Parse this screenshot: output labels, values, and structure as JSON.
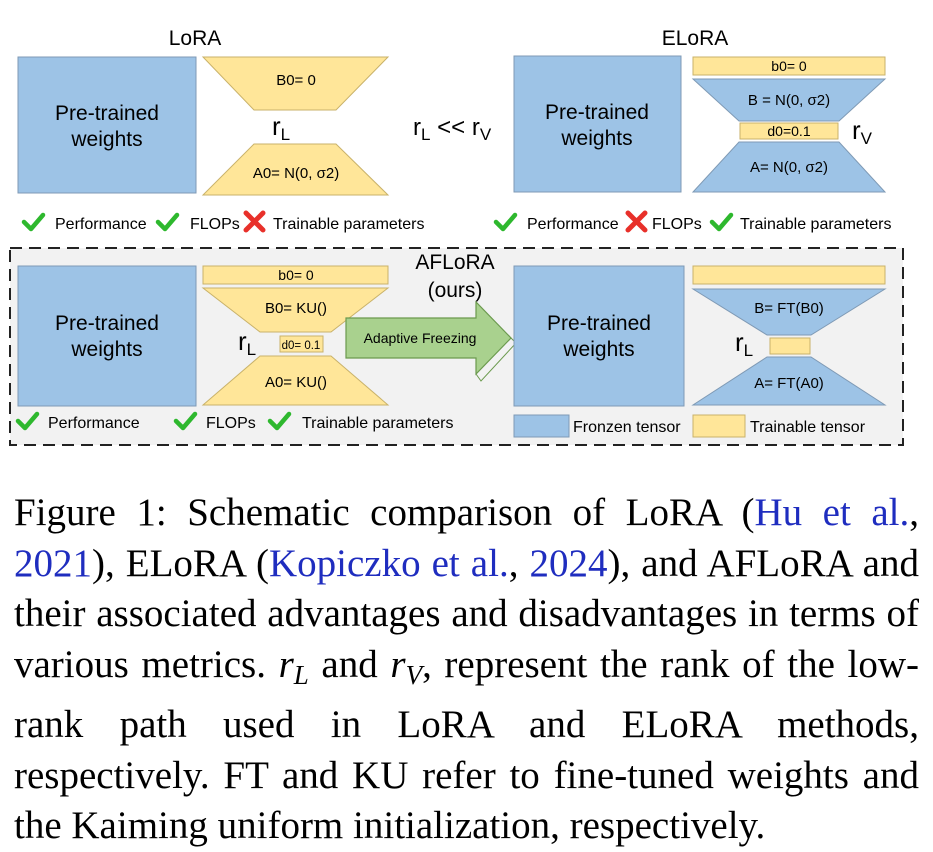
{
  "figure": {
    "lora": {
      "title": "LoRA",
      "pretrained": [
        "Pre-trained",
        "weights"
      ],
      "b0": "B0= 0",
      "a0": "A0= N(0, σ2)",
      "rank_label": "r",
      "rank_sub": "L"
    },
    "comparison": {
      "left": "r",
      "left_sub": "L",
      "op": " << r",
      "right_sub": "V"
    },
    "elora": {
      "title": "ELoRA",
      "pretrained": [
        "Pre-trained",
        "weights"
      ],
      "b0": "b0= 0",
      "b": "B = N(0, σ2)",
      "d0": "d0=0.1",
      "a": "A= N(0, σ2)",
      "rank_label": "r",
      "rank_sub": "V"
    },
    "lora_metrics": [
      {
        "mark": "check",
        "label": "Performance"
      },
      {
        "mark": "check",
        "label": "FLOPs"
      },
      {
        "mark": "cross",
        "label": "Trainable parameters"
      }
    ],
    "elora_metrics": [
      {
        "mark": "check",
        "label": "Performance"
      },
      {
        "mark": "cross",
        "label": "FLOPs"
      },
      {
        "mark": "check",
        "label": "Trainable parameters"
      }
    ],
    "aflora": {
      "title_line1": "AFLoRA",
      "title_line2": "(ours)",
      "pretrained_left": [
        "Pre-trained",
        "weights"
      ],
      "b0_small": "b0= 0",
      "b0": "B0= KU()",
      "d0": "d0= 0.1",
      "a0": "A0= KU()",
      "rank_label": "r",
      "rank_sub": "L",
      "arrow_label": "Adaptive Freezing",
      "pretrained_right": [
        "Pre-trained",
        "weights"
      ],
      "b": "B= FT(B0)",
      "a": "A= FT(A0)",
      "rank_label_right": "r",
      "rank_sub_right": "L",
      "metrics": [
        {
          "mark": "check",
          "label": "Performance"
        },
        {
          "mark": "check",
          "label": "FLOPs"
        },
        {
          "mark": "check",
          "label": "Trainable parameters"
        }
      ],
      "legend": [
        {
          "label": "Fronzen tensor",
          "color": "#9dc3e6"
        },
        {
          "label": "Trainable tensor",
          "color": "#ffe699"
        }
      ]
    },
    "colors": {
      "frozen": "#9dc3e6",
      "trainable": "#ffe699",
      "check": "#2eb82e",
      "cross": "#e8302a",
      "arrow": "#a9d18e"
    }
  },
  "caption": {
    "figure_label": "Figure 1:",
    "p1": " Schematic comparison of LoRA (",
    "cite1a": "Hu et al.",
    "p2": ", ",
    "cite1b": "2021",
    "p3": "), ELoRA (",
    "cite2a": "Kopiczko et al.",
    "p4": ", ",
    "cite2b": "2024",
    "p5": "), and AFLoRA and their associated advantages and disadvantages in terms of various metrics. ",
    "m1": "r",
    "m1_sub": "L",
    "p6": " and ",
    "m2": "r",
    "m2_sub": "V",
    "p7": ", represent the rank of the low-rank path used in LoRA and ELoRA methods, respectively. FT and KU refer to fine-tuned weights and the Kaiming uniform initialization, respectively."
  }
}
